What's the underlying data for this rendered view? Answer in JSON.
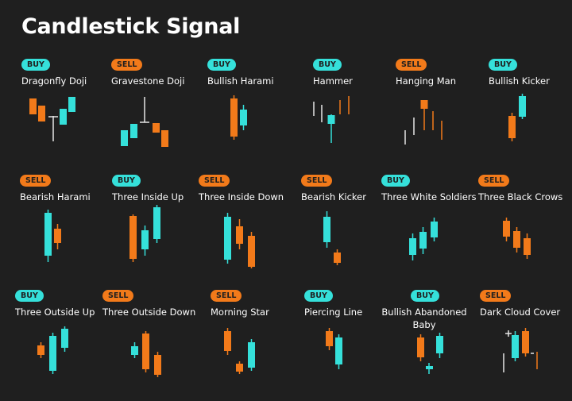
{
  "title": "Candlestick Signal",
  "colors": {
    "buy": "#35e0da",
    "sell": "#f27a1a",
    "wick": "#e6e6e6",
    "background": "#1f1f1f"
  },
  "patterns": [
    {
      "id": "dragonfly-doji",
      "name": "Dragonfly Doji",
      "signal": "BUY"
    },
    {
      "id": "gravestone-doji",
      "name": "Gravestone Doji",
      "signal": "SELL"
    },
    {
      "id": "bullish-harami",
      "name": "Bullish Harami",
      "signal": "BUY"
    },
    {
      "id": "hammer",
      "name": "Hammer",
      "signal": "BUY"
    },
    {
      "id": "hanging-man",
      "name": "Hanging Man",
      "signal": "SELL"
    },
    {
      "id": "bullish-kicker",
      "name": "Bullish Kicker",
      "signal": "BUY"
    },
    {
      "id": "bearish-harami",
      "name": "Bearish Harami",
      "signal": "SELL"
    },
    {
      "id": "three-inside-up",
      "name": "Three Inside Up",
      "signal": "BUY"
    },
    {
      "id": "three-inside-down",
      "name": "Three Inside Down",
      "signal": "SELL"
    },
    {
      "id": "bearish-kicker",
      "name": "Bearish Kicker",
      "signal": "SELL"
    },
    {
      "id": "three-white-soldiers",
      "name": "Three White Soldiers",
      "signal": "BUY"
    },
    {
      "id": "three-black-crows",
      "name": "Three Black Crows",
      "signal": "SELL"
    },
    {
      "id": "three-outside-up",
      "name": "Three Outside Up",
      "signal": "BUY"
    },
    {
      "id": "three-outside-down",
      "name": "Three Outside Down",
      "signal": "SELL"
    },
    {
      "id": "morning-star",
      "name": "Morning Star",
      "signal": "SELL"
    },
    {
      "id": "piercing-line",
      "name": "Piercing Line",
      "signal": "BUY"
    },
    {
      "id": "bullish-abandoned-baby",
      "name": "Bullish Abandoned Baby",
      "signal": "BUY"
    },
    {
      "id": "dark-cloud-cover",
      "name": "Dark Cloud Cover",
      "signal": "SELL"
    }
  ]
}
